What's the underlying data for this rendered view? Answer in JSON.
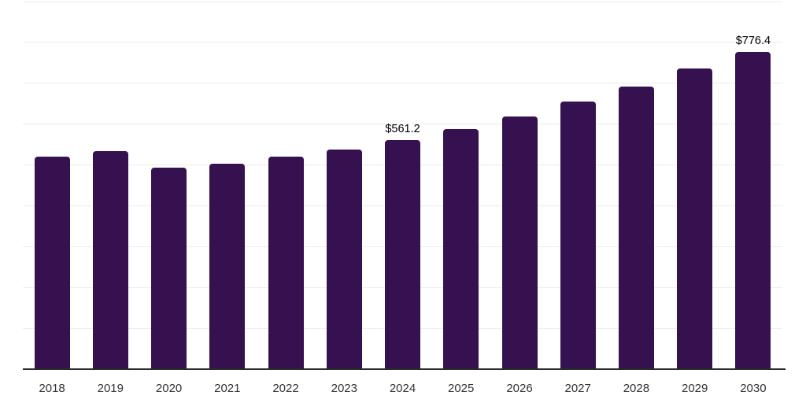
{
  "chart_data": {
    "type": "bar",
    "title": "",
    "xlabel": "",
    "ylabel": "",
    "categories": [
      "2018",
      "2019",
      "2020",
      "2021",
      "2022",
      "2023",
      "2024",
      "2025",
      "2026",
      "2027",
      "2028",
      "2029",
      "2030"
    ],
    "values": [
      520,
      533,
      492,
      502,
      519,
      537,
      561.2,
      588,
      619,
      654,
      691,
      736,
      776.4
    ],
    "point_labels": [
      "",
      "",
      "",
      "",
      "",
      "",
      "$561.2",
      "",
      "",
      "",
      "",
      "",
      "$776.4"
    ],
    "ylim": [
      0,
      900
    ],
    "grid_step": 100,
    "grid": true,
    "legend": false,
    "value_prefix": "$"
  },
  "colors": {
    "background": "#ffffff",
    "bar": "#36114f",
    "gridline": "#ececec",
    "axis": "#2b2b2b",
    "tick_label": "#333333",
    "data_label": "#000000"
  }
}
